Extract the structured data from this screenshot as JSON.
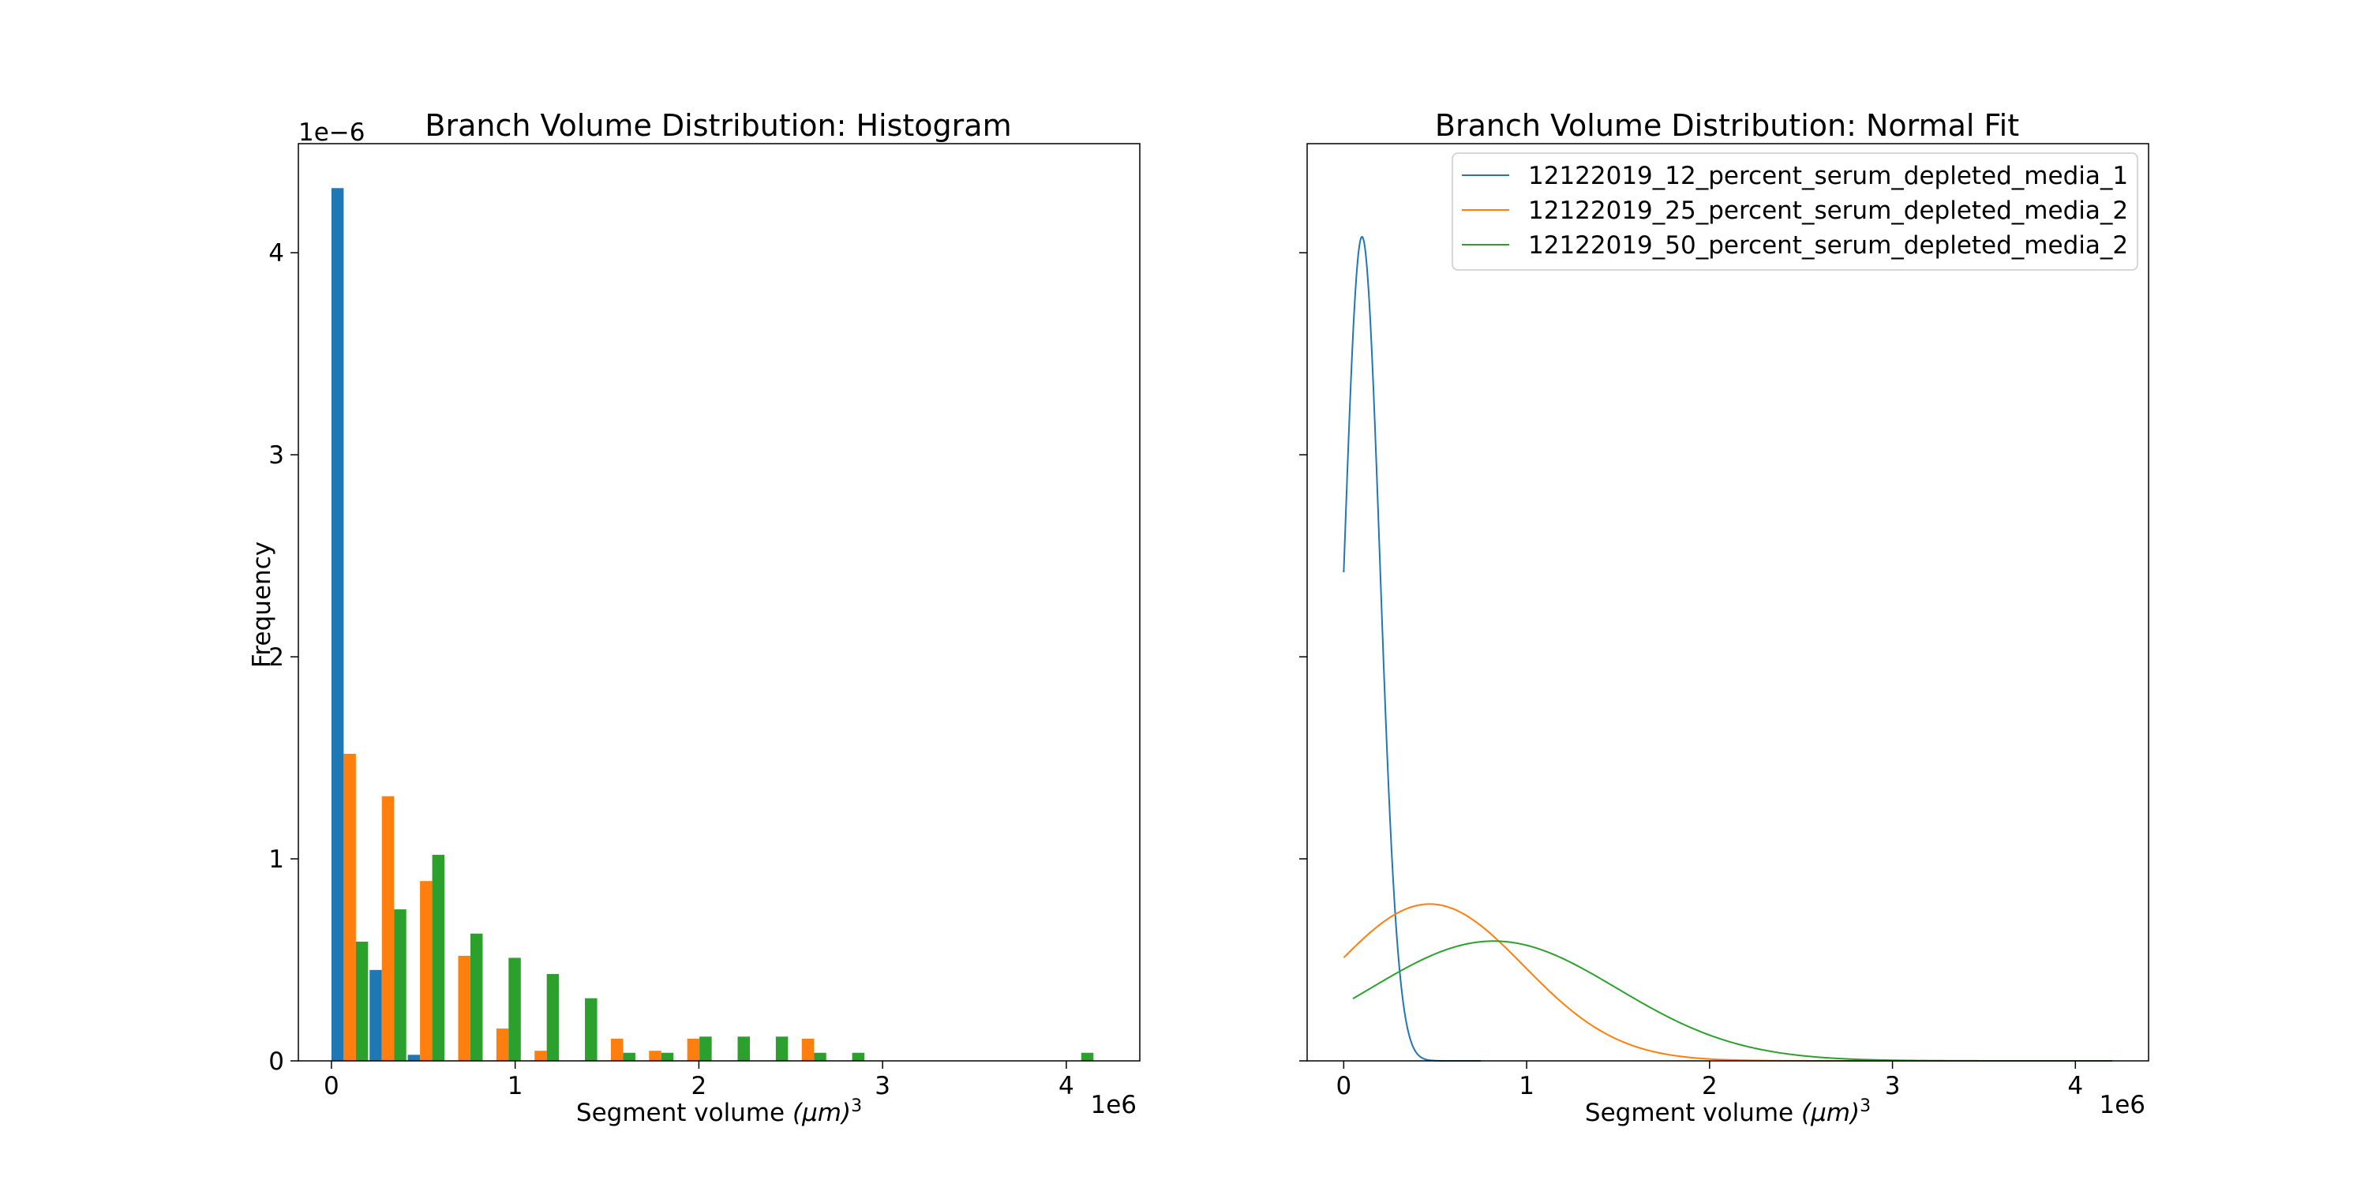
{
  "chart_data": [
    {
      "type": "bar",
      "title": "Branch Volume Distribution: Histogram",
      "xlabel": "Segment volume",
      "xlabel_unit": "(μm)",
      "xlabel_sup": "3",
      "ylabel": "Frequency",
      "x_offset_text": "1e6",
      "y_offset_text": "1e−6",
      "xlim": [
        -0.18,
        4.4
      ],
      "ylim": [
        0,
        4.54
      ],
      "xticks": [
        0,
        1,
        2,
        3,
        4
      ],
      "yticks": [
        0,
        1,
        2,
        3,
        4
      ],
      "grid": false,
      "bar_width": 0.0665,
      "bin_edges": [
        0.0,
        0.2078,
        0.4156,
        0.6234,
        0.8312,
        1.039,
        1.2468,
        1.4546,
        1.6624,
        1.8702,
        2.078,
        2.2858,
        2.4936,
        2.7014,
        2.9092,
        3.117,
        3.3248,
        3.5326,
        3.7404,
        3.9482,
        4.156
      ],
      "series": [
        {
          "color": "#1f77b4",
          "values": [
            4.32,
            0.45,
            0.03,
            0,
            0,
            0,
            0,
            0,
            0,
            0,
            0,
            0,
            0,
            0,
            0,
            0,
            0,
            0,
            0,
            0
          ]
        },
        {
          "color": "#ff7f0e",
          "values": [
            1.52,
            1.31,
            0.89,
            0.52,
            0.16,
            0.05,
            0,
            0.11,
            0.05,
            0.11,
            0,
            0,
            0.11,
            0,
            0,
            0,
            0,
            0,
            0,
            0
          ]
        },
        {
          "color": "#2ca02c",
          "values": [
            0.59,
            0.75,
            1.02,
            0.63,
            0.51,
            0.43,
            0.31,
            0.04,
            0.04,
            0.12,
            0.12,
            0.12,
            0.04,
            0.04,
            0,
            0,
            0,
            0,
            0,
            0.04
          ]
        }
      ]
    },
    {
      "type": "line",
      "title": "Branch Volume Distribution: Normal Fit",
      "xlabel": "Segment volume",
      "xlabel_unit": "(μm)",
      "xlabel_sup": "3",
      "x_offset_text": "1e6",
      "xlim": [
        -0.2,
        4.4
      ],
      "ylim": [
        0,
        4.54
      ],
      "xticks": [
        0,
        1,
        2,
        3,
        4
      ],
      "yticks": [
        0,
        1,
        2,
        3,
        4
      ],
      "grid": false,
      "legend_position": "top-right",
      "series": [
        {
          "name": "12122019_12_percent_serum_depleted_media_1",
          "color": "#1f77b4",
          "mean": 0.1,
          "std": 0.0978,
          "x_start": 0.0,
          "x_end": 0.75
        },
        {
          "name": "12122019_25_percent_serum_depleted_media_2",
          "color": "#ff7f0e",
          "mean": 0.47,
          "std": 0.514,
          "x_start": 0.0,
          "x_end": 4.2
        },
        {
          "name": "12122019_50_percent_serum_depleted_media_2",
          "color": "#2ca02c",
          "mean": 0.82,
          "std": 0.673,
          "x_start": 0.05,
          "x_end": 4.2
        }
      ]
    }
  ]
}
